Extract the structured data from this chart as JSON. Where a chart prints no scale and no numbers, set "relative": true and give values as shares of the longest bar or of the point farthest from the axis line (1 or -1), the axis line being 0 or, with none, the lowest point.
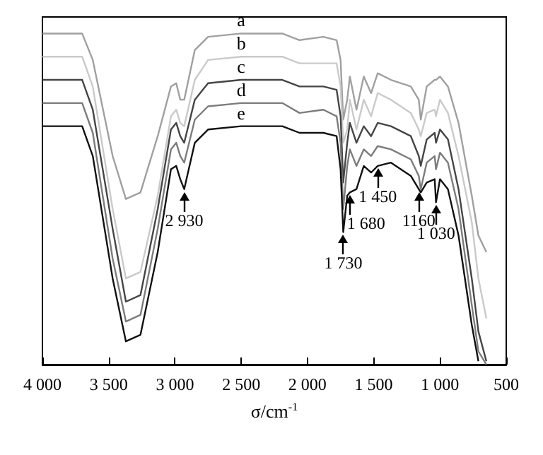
{
  "chart_data": {
    "type": "line",
    "relative": true,
    "xlabel": "σ/cm$^{-1}$",
    "x": [
      4000,
      3700,
      3620,
      3470,
      3370,
      3260,
      3130,
      3030,
      2990,
      2960,
      2930,
      2850,
      2750,
      2500,
      2190,
      2060,
      1880,
      1780,
      1750,
      1730,
      1700,
      1680,
      1630,
      1575,
      1520,
      1470,
      1370,
      1220,
      1160,
      1145,
      1100,
      1040,
      1030,
      1000,
      940,
      860,
      760,
      710,
      650
    ],
    "xlim": [
      4000,
      500
    ],
    "xticks": [
      {
        "value": 4000,
        "label": "4 000"
      },
      {
        "value": 3500,
        "label": "3 500"
      },
      {
        "value": 3000,
        "label": "3 000"
      },
      {
        "value": 2500,
        "label": "2 500"
      },
      {
        "value": 2000,
        "label": "2 000"
      },
      {
        "value": 1500,
        "label": "1 500"
      },
      {
        "value": 1000,
        "label": "1 000"
      },
      500
    ],
    "series": [
      {
        "name": "a",
        "color": "#a0a0a0",
        "values": [
          1,
          1,
          0.92,
          0.63,
          0.5,
          0.52,
          0.69,
          0.84,
          0.85,
          0.8,
          0.8,
          0.95,
          0.99,
          1,
          1,
          0.98,
          0.99,
          0.98,
          0.92,
          0.74,
          0.8,
          0.87,
          0.77,
          0.87,
          0.82,
          0.88,
          0.86,
          0.84,
          0.8,
          0.74,
          0.84,
          0.86,
          0.86,
          0.87,
          0.84,
          0.73,
          0.51,
          0.39,
          0.34
        ]
      },
      {
        "name": "b",
        "color": "#cacaca",
        "values": [
          0.93,
          0.93,
          0.84,
          0.47,
          0.26,
          0.28,
          0.51,
          0.75,
          0.77,
          0.73,
          0.72,
          0.86,
          0.92,
          0.93,
          0.93,
          0.91,
          0.91,
          0.91,
          0.84,
          0.67,
          0.71,
          0.8,
          0.71,
          0.8,
          0.75,
          0.82,
          0.8,
          0.76,
          0.71,
          0.69,
          0.76,
          0.77,
          0.75,
          0.8,
          0.76,
          0.63,
          0.43,
          0.26,
          0.14
        ]
      },
      {
        "name": "c",
        "color": "#454545",
        "values": [
          0.86,
          0.86,
          0.77,
          0.41,
          0.19,
          0.21,
          0.47,
          0.71,
          0.73,
          0.69,
          0.67,
          0.8,
          0.85,
          0.86,
          0.86,
          0.84,
          0.84,
          0.83,
          0.75,
          0.55,
          0.67,
          0.73,
          0.67,
          0.72,
          0.69,
          0.73,
          0.72,
          0.69,
          0.63,
          0.6,
          0.68,
          0.7,
          0.67,
          0.71,
          0.68,
          0.53,
          0.26,
          0.1,
          0.01
        ]
      },
      {
        "name": "d",
        "color": "#7c7c7c",
        "values": [
          0.79,
          0.79,
          0.7,
          0.32,
          0.13,
          0.15,
          0.41,
          0.65,
          0.67,
          0.63,
          0.61,
          0.74,
          0.78,
          0.79,
          0.79,
          0.76,
          0.77,
          0.75,
          0.67,
          0.47,
          0.6,
          0.65,
          0.6,
          0.65,
          0.63,
          0.66,
          0.65,
          0.62,
          0.57,
          0.53,
          0.61,
          0.63,
          0.59,
          0.64,
          0.61,
          0.47,
          0.18,
          0.04,
          0
        ]
      },
      {
        "name": "e",
        "color": "#111111",
        "values": [
          0.72,
          0.72,
          0.63,
          0.26,
          0.07,
          0.09,
          0.34,
          0.59,
          0.6,
          0.56,
          0.53,
          0.67,
          0.71,
          0.72,
          0.72,
          0.7,
          0.7,
          0.69,
          0.59,
          0.4,
          0.51,
          0.52,
          0.53,
          0.6,
          0.58,
          0.6,
          0.61,
          0.57,
          0.53,
          0.52,
          0.55,
          0.56,
          0.49,
          0.56,
          0.53,
          0.39,
          0.12,
          0.01,
          null
        ]
      }
    ],
    "annotations": [
      {
        "text": "2 930",
        "x": 2930,
        "y": 0.53
      },
      {
        "text": "1 730",
        "x": 1730,
        "y": 0.4
      },
      {
        "text": "1 680",
        "x": 1680,
        "y": 0.52
      },
      {
        "text": "1 450",
        "x": 1470,
        "y": 0.6
      },
      {
        "text": "1160",
        "x": 1160,
        "y": 0.53
      },
      {
        "text": "1 030",
        "x": 1030,
        "y": 0.49
      }
    ],
    "grid": false,
    "legend": false,
    "marker": "none",
    "line_style": "solid"
  }
}
